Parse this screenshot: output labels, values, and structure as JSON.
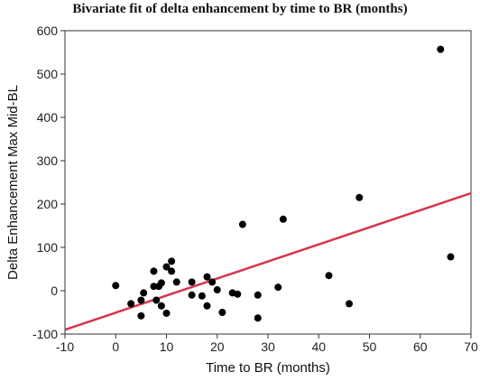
{
  "chart_data": {
    "type": "scatter",
    "title": "Bivariate fit of delta enhancement by time to BR (months)",
    "xlabel": "Time to BR (months)",
    "ylabel": "Delta Enhancement Max Mid-BL",
    "xlim": [
      -10,
      70
    ],
    "ylim": [
      -100,
      600
    ],
    "xticks": [
      -10,
      0,
      10,
      20,
      30,
      40,
      50,
      60,
      70
    ],
    "yticks": [
      -100,
      0,
      100,
      200,
      300,
      400,
      500,
      600
    ],
    "grid": false,
    "legend": "none",
    "point_color": "#000000",
    "fit_color": "#d6344d",
    "points": [
      {
        "x": 0,
        "y": 12
      },
      {
        "x": 3,
        "y": -30
      },
      {
        "x": 5,
        "y": -58
      },
      {
        "x": 5,
        "y": -22
      },
      {
        "x": 5.5,
        "y": -5
      },
      {
        "x": 7.5,
        "y": 45
      },
      {
        "x": 7.5,
        "y": 10
      },
      {
        "x": 8,
        "y": -22
      },
      {
        "x": 8.5,
        "y": 10
      },
      {
        "x": 9,
        "y": -35
      },
      {
        "x": 9,
        "y": 18
      },
      {
        "x": 10,
        "y": 55
      },
      {
        "x": 10,
        "y": -52
      },
      {
        "x": 11,
        "y": 45
      },
      {
        "x": 11,
        "y": 68
      },
      {
        "x": 12,
        "y": 20
      },
      {
        "x": 15,
        "y": 20
      },
      {
        "x": 15,
        "y": -10
      },
      {
        "x": 17,
        "y": -12
      },
      {
        "x": 18,
        "y": 32
      },
      {
        "x": 18,
        "y": -35
      },
      {
        "x": 19,
        "y": 20
      },
      {
        "x": 20,
        "y": 2
      },
      {
        "x": 21,
        "y": -50
      },
      {
        "x": 23,
        "y": -5
      },
      {
        "x": 24,
        "y": -8
      },
      {
        "x": 25,
        "y": 153
      },
      {
        "x": 28,
        "y": -10
      },
      {
        "x": 28,
        "y": -63
      },
      {
        "x": 32,
        "y": 8
      },
      {
        "x": 33,
        "y": 165
      },
      {
        "x": 42,
        "y": 35
      },
      {
        "x": 46,
        "y": -30
      },
      {
        "x": 48,
        "y": 215
      },
      {
        "x": 64,
        "y": 557
      },
      {
        "x": 66,
        "y": 78
      }
    ],
    "fit_line": {
      "x": [
        -10,
        70
      ],
      "y": [
        -90,
        225
      ]
    }
  }
}
